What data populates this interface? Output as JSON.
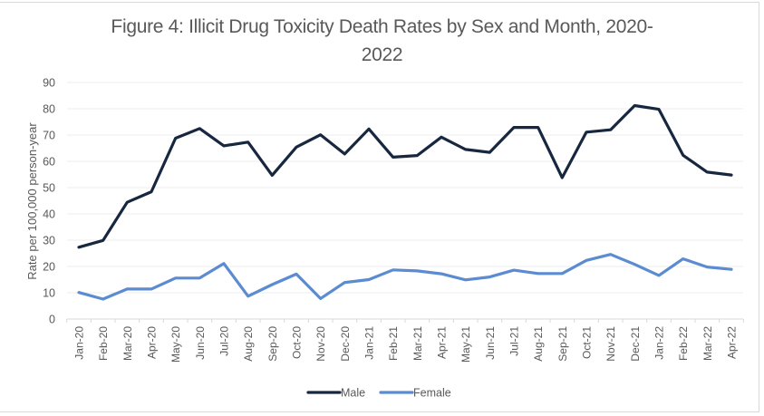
{
  "chart_data": {
    "type": "line",
    "title": "Figure 4: Illicit Drug Toxicity Death Rates by Sex and Month, 2020-2022",
    "title_lines": [
      "Figure 4: Illicit Drug Toxicity Death Rates by Sex and Month, 2020-",
      "2022"
    ],
    "xlabel": "",
    "ylabel": "Rate per 100,000 person-year",
    "ylim": [
      0,
      90
    ],
    "yticks": [
      0,
      10,
      20,
      30,
      40,
      50,
      60,
      70,
      80,
      90
    ],
    "grid": true,
    "legend_position": "bottom",
    "categories": [
      "Jan-20",
      "Feb-20",
      "Mar-20",
      "Apr-20",
      "May-20",
      "Jun-20",
      "Jul-20",
      "Aug-20",
      "Sep-20",
      "Oct-20",
      "Nov-20",
      "Dec-20",
      "Jan-21",
      "Feb-21",
      "Mar-21",
      "Apr-21",
      "May-21",
      "Jun-21",
      "Jul-21",
      "Aug-21",
      "Sep-21",
      "Oct-21",
      "Nov-21",
      "Dec-21",
      "Jan-22",
      "Feb-22",
      "Mar-22",
      "Apr-22"
    ],
    "series": [
      {
        "name": "Male",
        "color": "#17273f",
        "values": [
          27.3,
          29.9,
          44.4,
          48.4,
          68.8,
          72.5,
          65.9,
          67.3,
          54.7,
          65.4,
          70.1,
          62.8,
          72.3,
          61.6,
          62.2,
          69.2,
          64.5,
          63.4,
          72.9,
          72.9,
          53.8,
          71.1,
          72.0,
          81.2,
          79.8,
          62.3,
          55.9,
          54.8
        ]
      },
      {
        "name": "Female",
        "color": "#5b8bd0",
        "values": [
          10.1,
          7.6,
          11.4,
          11.4,
          15.6,
          15.6,
          21.1,
          8.7,
          13.1,
          17.1,
          7.8,
          13.9,
          15.0,
          18.7,
          18.3,
          17.2,
          14.9,
          16.0,
          18.6,
          17.3,
          17.3,
          22.3,
          24.6,
          20.8,
          16.6,
          22.9,
          19.8,
          18.9
        ]
      }
    ]
  }
}
